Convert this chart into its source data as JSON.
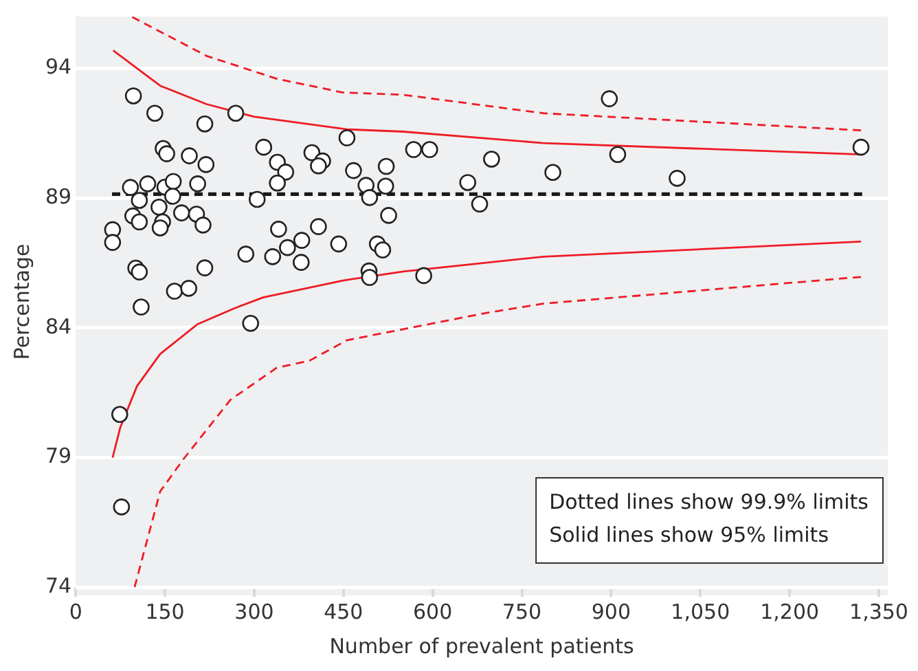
{
  "chart_data": {
    "type": "scatter",
    "xlabel": "Number of prevalent patients",
    "ylabel": "Percentage",
    "xlim": [
      0,
      1365
    ],
    "xticks": [
      0,
      150,
      300,
      450,
      600,
      750,
      900,
      {
        "value": 1050,
        "label": "1,050"
      },
      {
        "value": 1200,
        "label": "1,200"
      },
      {
        "value": 1350,
        "label": "1,350"
      }
    ],
    "ylim": [
      74,
      96
    ],
    "yticks": [
      74,
      79,
      84,
      89,
      94
    ],
    "grid": "y",
    "legend": false,
    "annotations": [
      "Dotted lines show 99.9% limits",
      "Solid lines show 95% limits"
    ],
    "series": [
      {
        "marker": "circle",
        "color": "#222222",
        "x": [
          97,
          133,
          217,
          269,
          147,
          153,
          191,
          219,
          316,
          339,
          353,
          397,
          415,
          408,
          456,
          92,
          121,
          150,
          164,
          205,
          339,
          107,
          163,
          305,
          140,
          96,
          107,
          146,
          142,
          178,
          203,
          214,
          62,
          62,
          341,
          408,
          380,
          356,
          331,
          379,
          442,
          286,
          101,
          107,
          217,
          166,
          190,
          110,
          294,
          74,
          77,
          467,
          522,
          488,
          521,
          494,
          568,
          595,
          699,
          659,
          679,
          526,
          507,
          516,
          493,
          494,
          585,
          897,
          911,
          802,
          1011,
          1320
        ],
        "values": [
          92.94,
          92.27,
          91.86,
          92.27,
          90.91,
          90.71,
          90.63,
          90.29,
          90.96,
          90.38,
          90.0,
          90.75,
          90.43,
          90.24,
          91.32,
          89.41,
          89.55,
          89.42,
          89.64,
          89.55,
          89.58,
          88.91,
          89.07,
          88.95,
          88.65,
          88.31,
          88.08,
          88.08,
          87.85,
          88.43,
          88.38,
          87.96,
          87.78,
          87.29,
          87.8,
          87.9,
          87.37,
          87.09,
          86.74,
          86.52,
          87.23,
          86.84,
          86.3,
          86.15,
          86.31,
          85.41,
          85.52,
          84.8,
          84.17,
          80.66,
          77.09,
          90.06,
          90.22,
          89.49,
          89.46,
          89.02,
          90.87,
          90.87,
          90.5,
          89.6,
          88.77,
          88.33,
          87.23,
          87.0,
          86.19,
          85.94,
          86.01,
          92.83,
          90.68,
          89.99,
          89.76,
          90.96
        ]
      },
      {
        "type": "line",
        "line_style": "dashed",
        "color": "#1a1a1a",
        "x": [
          61,
          1322
        ],
        "values": [
          89.15,
          89.15
        ]
      },
      {
        "type": "line",
        "line_style": "solid",
        "color": "#ee1c25",
        "x": [
          63,
          142,
          220,
          299,
          456,
          551,
          786,
          1320
        ],
        "values": [
          94.69,
          93.33,
          92.62,
          92.14,
          91.65,
          91.56,
          91.12,
          90.68
        ]
      },
      {
        "type": "line",
        "line_style": "solid",
        "color": "#ee1c25",
        "x": [
          62,
          75,
          103,
          142,
          205,
          268,
          315,
          449,
          551,
          786,
          1320
        ],
        "values": [
          78.99,
          80.16,
          81.75,
          82.99,
          84.14,
          84.76,
          85.17,
          85.82,
          86.17,
          86.74,
          87.32
        ]
      },
      {
        "type": "line",
        "line_style": "dashed",
        "color": "#ee1c25",
        "x": [
          95,
          220,
          338,
          449,
          551,
          786,
          1320
        ],
        "values": [
          95.98,
          94.48,
          93.6,
          93.07,
          92.98,
          92.27,
          91.61
        ]
      },
      {
        "type": "line",
        "line_style": "dashed",
        "color": "#ee1c25",
        "x": [
          99,
          142,
          181,
          260,
          338,
          393,
          456,
          692,
          786,
          1320
        ],
        "values": [
          74.0,
          77.69,
          78.93,
          81.22,
          82.46,
          82.73,
          83.52,
          84.58,
          84.93,
          85.96
        ]
      }
    ]
  }
}
